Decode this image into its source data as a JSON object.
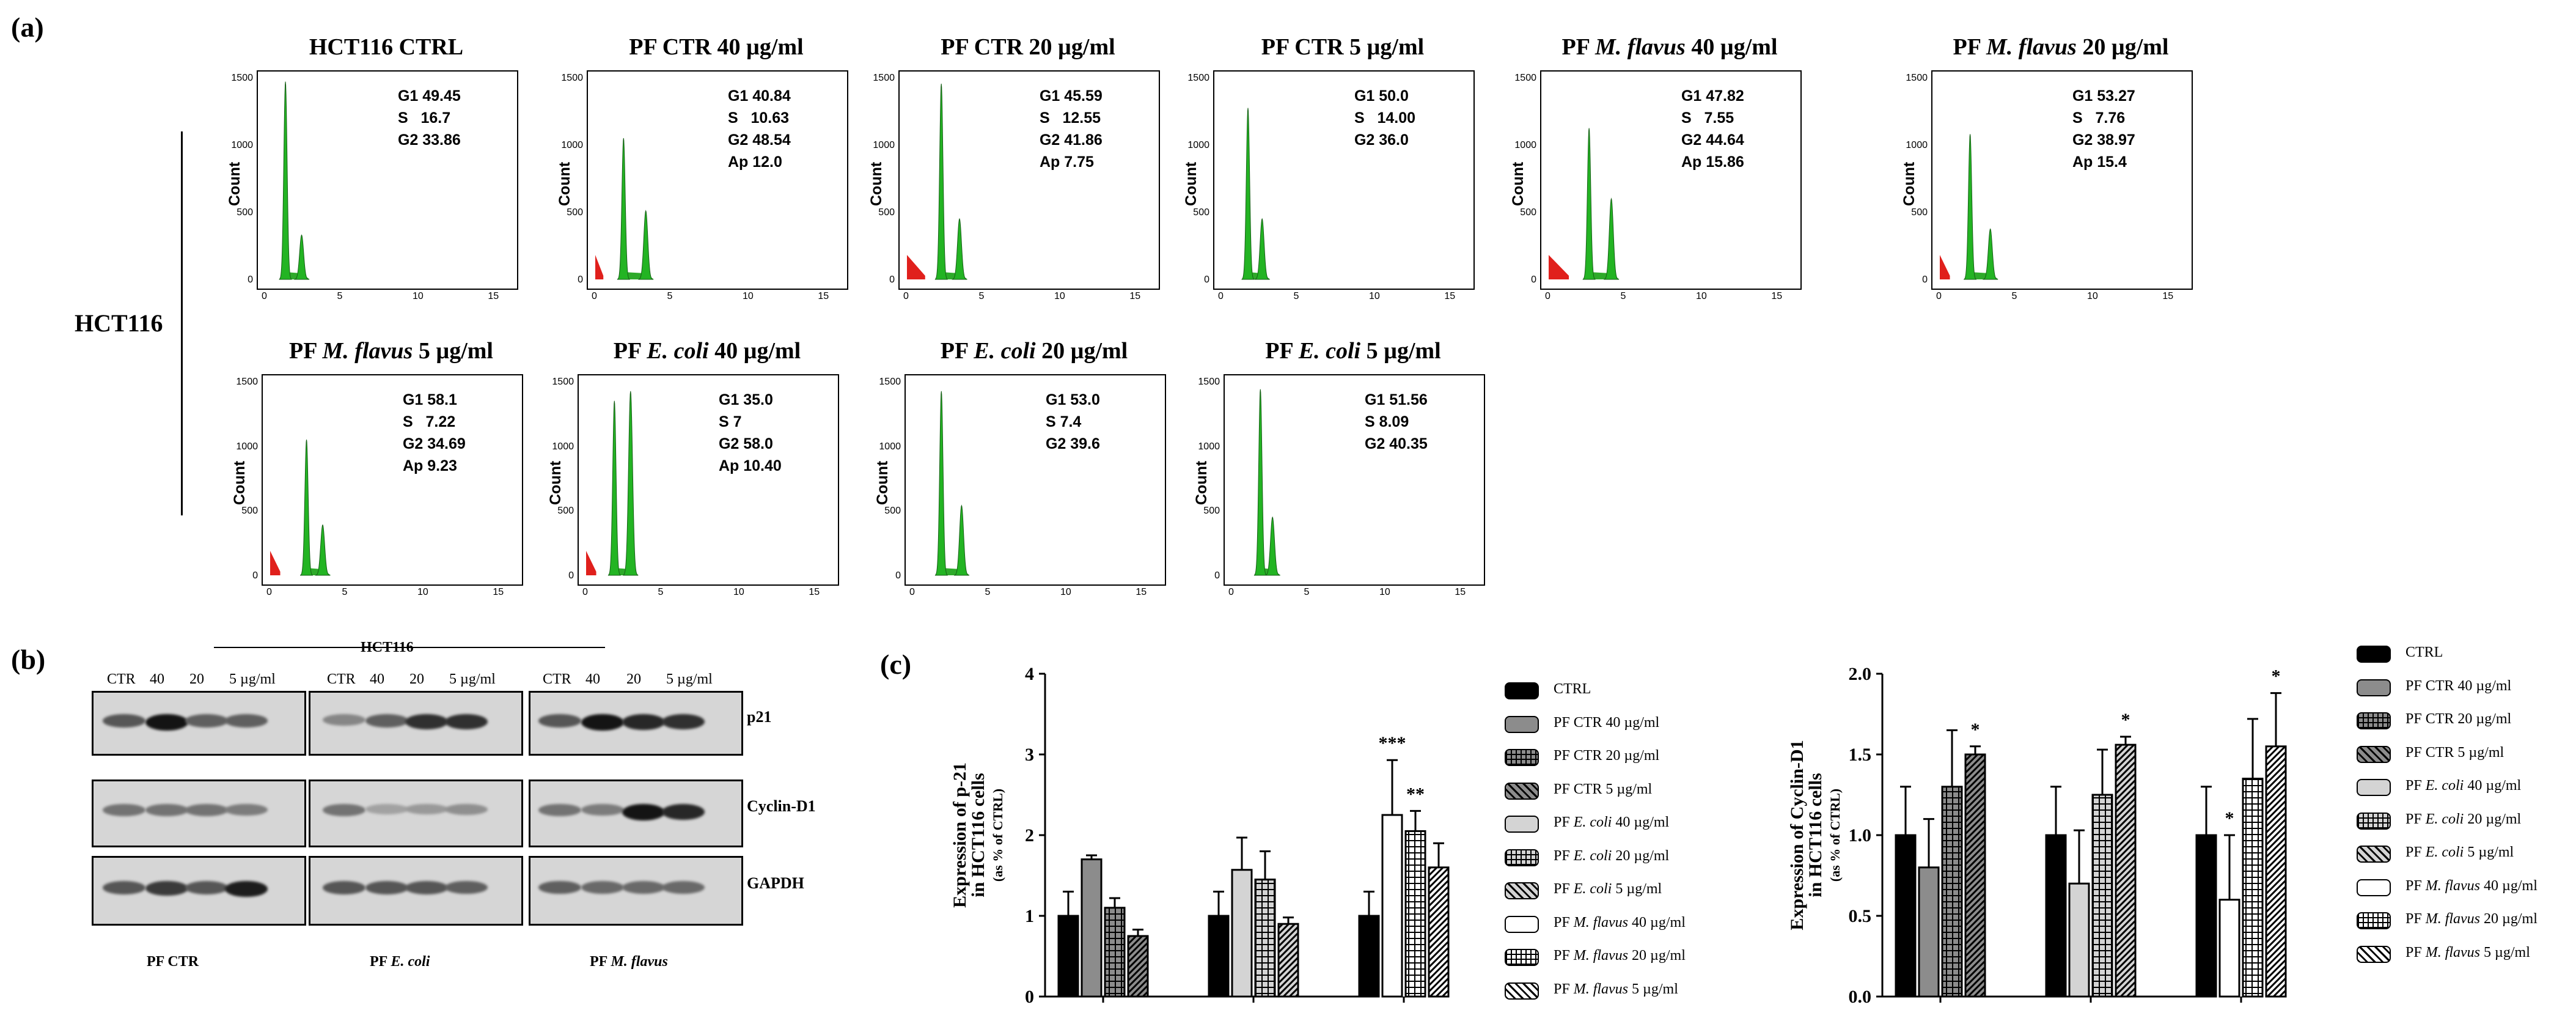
{
  "panel_a": {
    "letter": "(a)",
    "row_label": "HCT116",
    "plots": [
      {
        "title_pre": "HCT116 CTRL",
        "title_em": "",
        "title_post": "",
        "stats": "G1 49.45\nS   16.7\nG2 33.86",
        "y_ticks": [
          "1500",
          "1000",
          "500",
          "0"
        ],
        "x_ticks": [
          "0",
          "5",
          "10",
          "15"
        ],
        "ylabel": "Count"
      },
      {
        "title_pre": "PF CTR 40 µg/ml",
        "title_em": "",
        "title_post": "",
        "stats": "G1 40.84\nS   10.63\nG2 48.54\nAp 12.0",
        "y_ticks": [
          "1500",
          "1000",
          "500",
          "0"
        ],
        "x_ticks": [
          "0",
          "5",
          "10",
          "15"
        ],
        "ylabel": "Count"
      },
      {
        "title_pre": "PF CTR 20 µg/ml",
        "title_em": "",
        "title_post": "",
        "stats": "G1 45.59\nS   12.55\nG2 41.86\nAp 7.75",
        "y_ticks": [
          "1500",
          "1000",
          "500",
          "0"
        ],
        "x_ticks": [
          "0",
          "5",
          "10",
          "15"
        ],
        "ylabel": "Count"
      },
      {
        "title_pre": "PF CTR 5 µg/ml",
        "title_em": "",
        "title_post": "",
        "stats": "G1 50.0\nS   14.00\nG2 36.0",
        "y_ticks": [
          "1500",
          "1000",
          "500",
          "0"
        ],
        "x_ticks": [
          "0",
          "5",
          "10",
          "15"
        ],
        "ylabel": "Count"
      },
      {
        "title_pre": "PF ",
        "title_em": "M. flavus",
        "title_post": " 40 µg/ml",
        "stats": "G1 47.82\nS   7.55\nG2 44.64\nAp 15.86",
        "y_ticks": [
          "1500",
          "1000",
          "500",
          "0"
        ],
        "x_ticks": [
          "0",
          "5",
          "10",
          "15"
        ],
        "ylabel": "Count"
      },
      {
        "title_pre": "PF ",
        "title_em": "M. flavus",
        "title_post": " 20 µg/ml",
        "stats": "G1 53.27\nS   7.76\nG2 38.97\nAp 15.4",
        "y_ticks": [
          "1500",
          "1000",
          "500",
          "0"
        ],
        "x_ticks": [
          "0",
          "5",
          "10",
          "15"
        ],
        "ylabel": "Count"
      },
      {
        "title_pre": "PF ",
        "title_em": "M. flavus",
        "title_post": " 5 µg/ml",
        "stats": "G1 58.1\nS   7.22\nG2 34.69\nAp 9.23",
        "y_ticks": [
          "1500",
          "1000",
          "500",
          "0"
        ],
        "x_ticks": [
          "0",
          "5",
          "10",
          "15"
        ],
        "ylabel": "Count"
      },
      {
        "title_pre": "PF ",
        "title_em": "E. coli",
        "title_post": " 40 µg/ml",
        "stats": "G1 35.0\nS 7\nG2 58.0\nAp 10.40",
        "y_ticks": [
          "1500",
          "1000",
          "500",
          "0"
        ],
        "x_ticks": [
          "0",
          "5",
          "10",
          "15"
        ],
        "ylabel": "Count"
      },
      {
        "title_pre": "PF ",
        "title_em": "E. coli",
        "title_post": " 20 µg/ml",
        "stats": "G1 53.0\nS 7.4\nG2 39.6",
        "y_ticks": [
          "1500",
          "1000",
          "500",
          "0"
        ],
        "x_ticks": [
          "0",
          "5",
          "10",
          "15"
        ],
        "ylabel": "Count"
      },
      {
        "title_pre": "PF ",
        "title_em": "E. coli",
        "title_post": " 5 µg/ml",
        "stats": "G1 51.56\nS 8.09\nG2 40.35",
        "y_ticks": [
          "1500",
          "1000",
          "500",
          "0"
        ],
        "x_ticks": [
          "0",
          "5",
          "10",
          "15"
        ],
        "ylabel": "Count"
      }
    ]
  },
  "panel_b": {
    "letter": "(b)",
    "cell_line": "HCT116",
    "lanes": [
      "CTR",
      "40",
      "20",
      "5  µg/ml"
    ],
    "proteins": [
      "p21",
      "Cyclin-D1",
      "GAPDH"
    ],
    "groups": [
      {
        "pre": "PF CTR",
        "em": ""
      },
      {
        "pre": "PF ",
        "em": "E. coli"
      },
      {
        "pre": "PF ",
        "em": "M. flavus"
      }
    ]
  },
  "panel_c": {
    "letter": "(c)",
    "legend": [
      {
        "pre": "CTRL",
        "em": "",
        "post": ""
      },
      {
        "pre": "PF CTR 40 µg/ml",
        "em": "",
        "post": ""
      },
      {
        "pre": "PF CTR 20 µg/ml",
        "em": "",
        "post": ""
      },
      {
        "pre": "PF CTR 5 µg/ml",
        "em": "",
        "post": ""
      },
      {
        "pre": "PF ",
        "em": "E. coli",
        "post": " 40 µg/ml"
      },
      {
        "pre": "PF ",
        "em": "E. coli",
        "post": " 20 µg/ml"
      },
      {
        "pre": "PF ",
        "em": "E. coli",
        "post": " 5 µg/ml"
      },
      {
        "pre": "PF ",
        "em": "M. flavus",
        "post": " 40 µg/ml"
      },
      {
        "pre": "PF ",
        "em": "M. flavus",
        "post": " 20 µg/ml"
      },
      {
        "pre": "PF ",
        "em": "M. flavus",
        "post": " 5 µg/ml"
      }
    ]
  },
  "chart_data": [
    {
      "type": "bar",
      "ylabel_line1": "Expression of p-21",
      "ylabel_line2": "in HCT116 cells",
      "ylabel_line3": "(as % of CTRL)",
      "ylim": [
        0,
        4
      ],
      "yticks": [
        "0",
        "1",
        "2",
        "3",
        "4"
      ],
      "groups": [
        {
          "bars": [
            {
              "series": "CTRL",
              "value": 1.0,
              "err": 0.3,
              "sig": ""
            },
            {
              "series": "PF CTR 40 µg/ml",
              "value": 1.7,
              "err": 0.05,
              "sig": ""
            },
            {
              "series": "PF CTR 20 µg/ml",
              "value": 1.1,
              "err": 0.12,
              "sig": ""
            },
            {
              "series": "PF CTR 5 µg/ml",
              "value": 0.75,
              "err": 0.08,
              "sig": ""
            }
          ]
        },
        {
          "bars": [
            {
              "series": "CTRL",
              "value": 1.0,
              "err": 0.3,
              "sig": ""
            },
            {
              "series": "PF E. coli 40 µg/ml",
              "value": 1.57,
              "err": 0.4,
              "sig": ""
            },
            {
              "series": "PF E. coli 20 µg/ml",
              "value": 1.45,
              "err": 0.35,
              "sig": ""
            },
            {
              "series": "PF E. coli 5 µg/ml",
              "value": 0.9,
              "err": 0.08,
              "sig": ""
            }
          ]
        },
        {
          "bars": [
            {
              "series": "CTRL",
              "value": 1.0,
              "err": 0.3,
              "sig": ""
            },
            {
              "series": "PF M. flavus 40 µg/ml",
              "value": 2.25,
              "err": 0.68,
              "sig": "***"
            },
            {
              "series": "PF M. flavus 20 µg/ml",
              "value": 2.05,
              "err": 0.25,
              "sig": "**"
            },
            {
              "series": "PF M. flavus 5 µg/ml",
              "value": 1.6,
              "err": 0.3,
              "sig": ""
            }
          ]
        }
      ]
    },
    {
      "type": "bar",
      "ylabel_line1": "Expression of Cyclin-D1",
      "ylabel_line2": "in HCT116 cells",
      "ylabel_line3": "(as % of CTRL)",
      "ylim": [
        0,
        2.0
      ],
      "yticks": [
        "0.0",
        "0.5",
        "1.0",
        "1.5",
        "2.0"
      ],
      "groups": [
        {
          "bars": [
            {
              "series": "CTRL",
              "value": 1.0,
              "err": 0.3,
              "sig": ""
            },
            {
              "series": "PF CTR 40 µg/ml",
              "value": 0.8,
              "err": 0.3,
              "sig": ""
            },
            {
              "series": "PF CTR 20 µg/ml",
              "value": 1.3,
              "err": 0.35,
              "sig": ""
            },
            {
              "series": "PF CTR 5 µg/ml",
              "value": 1.5,
              "err": 0.05,
              "sig": "*"
            }
          ]
        },
        {
          "bars": [
            {
              "series": "CTRL",
              "value": 1.0,
              "err": 0.3,
              "sig": ""
            },
            {
              "series": "PF E. coli 40 µg/ml",
              "value": 0.7,
              "err": 0.33,
              "sig": ""
            },
            {
              "series": "PF E. coli 20 µg/ml",
              "value": 1.25,
              "err": 0.28,
              "sig": ""
            },
            {
              "series": "PF E. coli 5 µg/ml",
              "value": 1.56,
              "err": 0.05,
              "sig": "*"
            }
          ]
        },
        {
          "bars": [
            {
              "series": "CTRL",
              "value": 1.0,
              "err": 0.3,
              "sig": ""
            },
            {
              "series": "PF M. flavus 40 µg/ml",
              "value": 0.6,
              "err": 0.4,
              "sig": "*"
            },
            {
              "series": "PF M. flavus 20 µg/ml",
              "value": 1.35,
              "err": 0.37,
              "sig": ""
            },
            {
              "series": "PF M. flavus 5 µg/ml",
              "value": 1.55,
              "err": 0.33,
              "sig": "*"
            }
          ]
        }
      ]
    }
  ]
}
